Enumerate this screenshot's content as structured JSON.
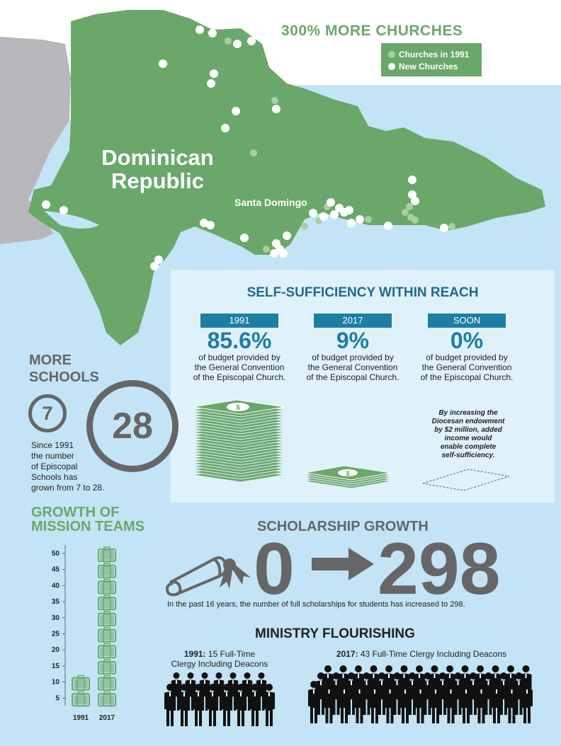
{
  "map": {
    "country_line1": "Dominican",
    "country_line2": "Republic",
    "city": "Santa Domingo"
  },
  "churches": {
    "title": "300% MORE CHURCHES",
    "legend_1991": "Churches in 1991",
    "legend_new": "New Churches",
    "color_1991": "#a9cfa2",
    "color_new": "#ffffff"
  },
  "self_sufficiency": {
    "title": "SELF-SUFFICIENCY WITHIN REACH",
    "items": [
      {
        "year": "1991",
        "percent": "85.6%",
        "desc_line1": "of budget provided by",
        "desc_line2": "the General Convention",
        "desc_line3": "of the Episcopal Church."
      },
      {
        "year": "2017",
        "percent": "9%",
        "desc_line1": "of budget provided by",
        "desc_line2": "the General Convention",
        "desc_line3": "of the Episcopal Church."
      },
      {
        "year": "SOON",
        "percent": "0%",
        "desc_line1": "of budget provided by",
        "desc_line2": "the General Convention",
        "desc_line3": "of the Episcopal Church."
      }
    ],
    "note_line1": "By increasing the",
    "note_line2": "Diocesan endowment",
    "note_line3": "by $2 million, added",
    "note_line4": "income would",
    "note_line5": "enable complete",
    "note_line6": "self-sufficiency."
  },
  "schools": {
    "title_line1": "MORE",
    "title_line2": "SCHOOLS",
    "from": "7",
    "to": "28",
    "desc_line1": "Since 1991",
    "desc_line2": "the number",
    "desc_line3": "of Episcopal",
    "desc_line4": "Schools has",
    "desc_line5": "grown from 7 to 28."
  },
  "mission": {
    "title_line1": "GROWTH OF",
    "title_line2": "MISSION TEAMS"
  },
  "chart_data": {
    "type": "bar",
    "categories": [
      "1991",
      "2017"
    ],
    "values": [
      10,
      50
    ],
    "ylim": [
      0,
      50
    ],
    "yticks": [
      "5",
      "10",
      "15",
      "20",
      "25",
      "30",
      "35",
      "40",
      "45",
      "50"
    ],
    "xlabel": "",
    "ylabel": "",
    "color": "#6aa86a"
  },
  "scholarship": {
    "title": "SCHOLARSHIP GROWTH",
    "from": "0",
    "to": "298",
    "desc": "In the past 16 years, the number of full scholarships for students has increased to 298."
  },
  "ministry": {
    "title": "MINISTRY FLOURISHING",
    "left_year": "1991:",
    "left_line1_rest": " 15 Full-Time",
    "left_line2": "Clergy Including Deacons",
    "left_count": 15,
    "right_year": "2017:",
    "right_rest": " 43 Full-Time Clergy Including Deacons",
    "right_count": 43
  }
}
